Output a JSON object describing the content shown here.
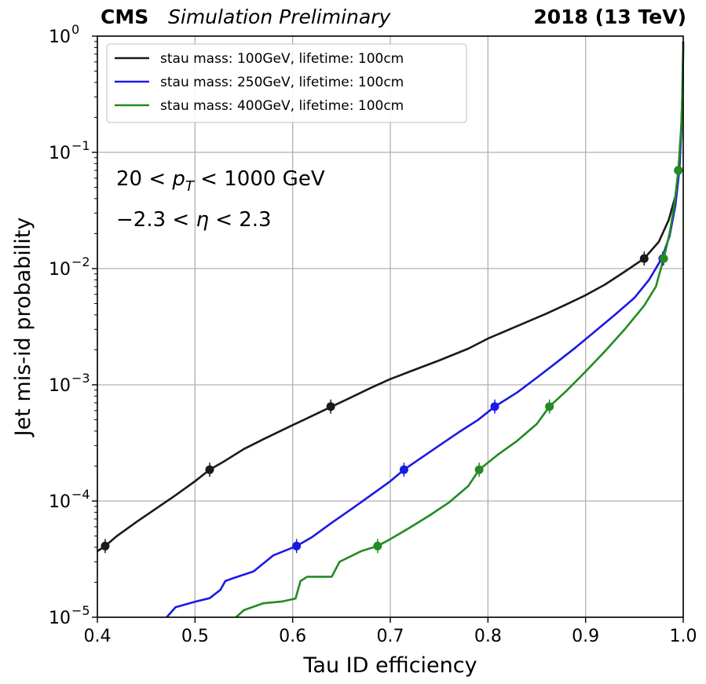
{
  "chart_data": {
    "type": "line",
    "title_left_bold": "CMS",
    "title_left_italic": "Simulation Preliminary",
    "title_right": "2018 (13 TeV)",
    "xlabel": "Tau ID efficiency",
    "ylabel": "Jet mis-id probability",
    "xlim": [
      0.4,
      1.0
    ],
    "ylim": [
      1e-05,
      1.0
    ],
    "yscale": "log",
    "grid": true,
    "legend_position": "top-left",
    "xticks": [
      {
        "value": 0.4,
        "label": "0.4"
      },
      {
        "value": 0.5,
        "label": "0.5"
      },
      {
        "value": 0.6,
        "label": "0.6"
      },
      {
        "value": 0.7,
        "label": "0.7"
      },
      {
        "value": 0.8,
        "label": "0.8"
      },
      {
        "value": 0.9,
        "label": "0.9"
      },
      {
        "value": 1.0,
        "label": "1.0"
      }
    ],
    "yticks": [
      {
        "value": 1e-05,
        "base": "10",
        "exp": "−5"
      },
      {
        "value": 0.0001,
        "base": "10",
        "exp": "−4"
      },
      {
        "value": 0.001,
        "base": "10",
        "exp": "−3"
      },
      {
        "value": 0.01,
        "base": "10",
        "exp": "−2"
      },
      {
        "value": 0.1,
        "base": "10",
        "exp": "−1"
      },
      {
        "value": 1,
        "base": "10",
        "exp": "0"
      }
    ],
    "annotations": {
      "pt_pre": "20 < ",
      "pt_sym": "p",
      "pt_sub": "T",
      "pt_post": " < 1000 GeV",
      "eta_pre": "−2.3 < ",
      "eta_sym": "η",
      "eta_post": " < 2.3"
    },
    "series": [
      {
        "name": "stau mass: 100GeV, lifetime: 100cm",
        "color": "#1a1a1a",
        "points": [
          [
            0.4,
            3.7e-05
          ],
          [
            0.408,
            4.1e-05
          ],
          [
            0.42,
            5e-05
          ],
          [
            0.44,
            6.6e-05
          ],
          [
            0.46,
            8.6e-05
          ],
          [
            0.48,
            0.000112
          ],
          [
            0.5,
            0.000148
          ],
          [
            0.515,
            0.000186
          ],
          [
            0.53,
            0.00022
          ],
          [
            0.55,
            0.00028
          ],
          [
            0.57,
            0.00034
          ],
          [
            0.6,
            0.00045
          ],
          [
            0.62,
            0.00054
          ],
          [
            0.64,
            0.00065
          ],
          [
            0.66,
            0.00078
          ],
          [
            0.68,
            0.00094
          ],
          [
            0.7,
            0.00112
          ],
          [
            0.72,
            0.0013
          ],
          [
            0.75,
            0.00162
          ],
          [
            0.78,
            0.00205
          ],
          [
            0.8,
            0.0025
          ],
          [
            0.83,
            0.0032
          ],
          [
            0.86,
            0.0041
          ],
          [
            0.88,
            0.0049
          ],
          [
            0.9,
            0.0059
          ],
          [
            0.92,
            0.0073
          ],
          [
            0.94,
            0.0094
          ],
          [
            0.96,
            0.0122
          ],
          [
            0.975,
            0.017
          ],
          [
            0.985,
            0.026
          ],
          [
            0.992,
            0.042
          ],
          [
            0.996,
            0.07
          ],
          [
            0.998,
            0.15
          ],
          [
            0.999,
            0.3
          ],
          [
            1.0,
            0.9
          ]
        ],
        "markers": [
          [
            0.408,
            4.1e-05
          ],
          [
            0.515,
            0.000186
          ],
          [
            0.639,
            0.00065
          ],
          [
            0.96,
            0.0122
          ]
        ]
      },
      {
        "name": "stau mass: 250GeV, lifetime: 100cm",
        "color": "#1a1ae6",
        "points": [
          [
            0.471,
            1e-05
          ],
          [
            0.48,
            1.22e-05
          ],
          [
            0.5,
            1.36e-05
          ],
          [
            0.515,
            1.46e-05
          ],
          [
            0.526,
            1.72e-05
          ],
          [
            0.531,
            2.05e-05
          ],
          [
            0.54,
            2.18e-05
          ],
          [
            0.56,
            2.48e-05
          ],
          [
            0.58,
            3.4e-05
          ],
          [
            0.604,
            4.1e-05
          ],
          [
            0.62,
            4.9e-05
          ],
          [
            0.64,
            6.5e-05
          ],
          [
            0.66,
            8.5e-05
          ],
          [
            0.68,
            0.000112
          ],
          [
            0.7,
            0.000148
          ],
          [
            0.714,
            0.000186
          ],
          [
            0.73,
            0.00023
          ],
          [
            0.75,
            0.0003
          ],
          [
            0.77,
            0.00039
          ],
          [
            0.79,
            0.0005
          ],
          [
            0.807,
            0.00065
          ],
          [
            0.83,
            0.00086
          ],
          [
            0.85,
            0.00115
          ],
          [
            0.87,
            0.00155
          ],
          [
            0.89,
            0.0021
          ],
          [
            0.91,
            0.0029
          ],
          [
            0.93,
            0.004
          ],
          [
            0.95,
            0.0056
          ],
          [
            0.965,
            0.008
          ],
          [
            0.978,
            0.0122
          ],
          [
            0.986,
            0.019
          ],
          [
            0.992,
            0.035
          ],
          [
            0.996,
            0.07
          ],
          [
            0.998,
            0.16
          ],
          [
            0.9995,
            0.35
          ],
          [
            1.0,
            0.85
          ]
        ],
        "markers": [
          [
            0.604,
            4.1e-05
          ],
          [
            0.714,
            0.000186
          ],
          [
            0.807,
            0.00065
          ],
          [
            0.979,
            0.0122
          ],
          [
            0.995,
            0.07
          ]
        ]
      },
      {
        "name": "stau mass: 400GeV, lifetime: 100cm",
        "color": "#228b22",
        "points": [
          [
            0.542,
            1e-05
          ],
          [
            0.55,
            1.15e-05
          ],
          [
            0.57,
            1.32e-05
          ],
          [
            0.59,
            1.37e-05
          ],
          [
            0.603,
            1.45e-05
          ],
          [
            0.608,
            2.05e-05
          ],
          [
            0.615,
            2.23e-05
          ],
          [
            0.64,
            2.23e-05
          ],
          [
            0.648,
            3e-05
          ],
          [
            0.67,
            3.7e-05
          ],
          [
            0.687,
            4.1e-05
          ],
          [
            0.7,
            4.7e-05
          ],
          [
            0.72,
            5.9e-05
          ],
          [
            0.74,
            7.5e-05
          ],
          [
            0.76,
            9.7e-05
          ],
          [
            0.78,
            0.000135
          ],
          [
            0.791,
            0.000186
          ],
          [
            0.81,
            0.00025
          ],
          [
            0.83,
            0.00033
          ],
          [
            0.85,
            0.00046
          ],
          [
            0.863,
            0.00065
          ],
          [
            0.88,
            0.00088
          ],
          [
            0.9,
            0.0013
          ],
          [
            0.92,
            0.00195
          ],
          [
            0.94,
            0.003
          ],
          [
            0.96,
            0.0048
          ],
          [
            0.972,
            0.007
          ],
          [
            0.98,
            0.0122
          ],
          [
            0.986,
            0.02
          ],
          [
            0.991,
            0.036
          ],
          [
            0.995,
            0.07
          ],
          [
            0.998,
            0.17
          ],
          [
            0.9995,
            0.38
          ],
          [
            1.0,
            0.85
          ]
        ],
        "markers": [
          [
            0.687,
            4.1e-05
          ],
          [
            0.791,
            0.000186
          ],
          [
            0.863,
            0.00065
          ],
          [
            0.98,
            0.0122
          ],
          [
            0.995,
            0.07
          ]
        ]
      }
    ]
  }
}
